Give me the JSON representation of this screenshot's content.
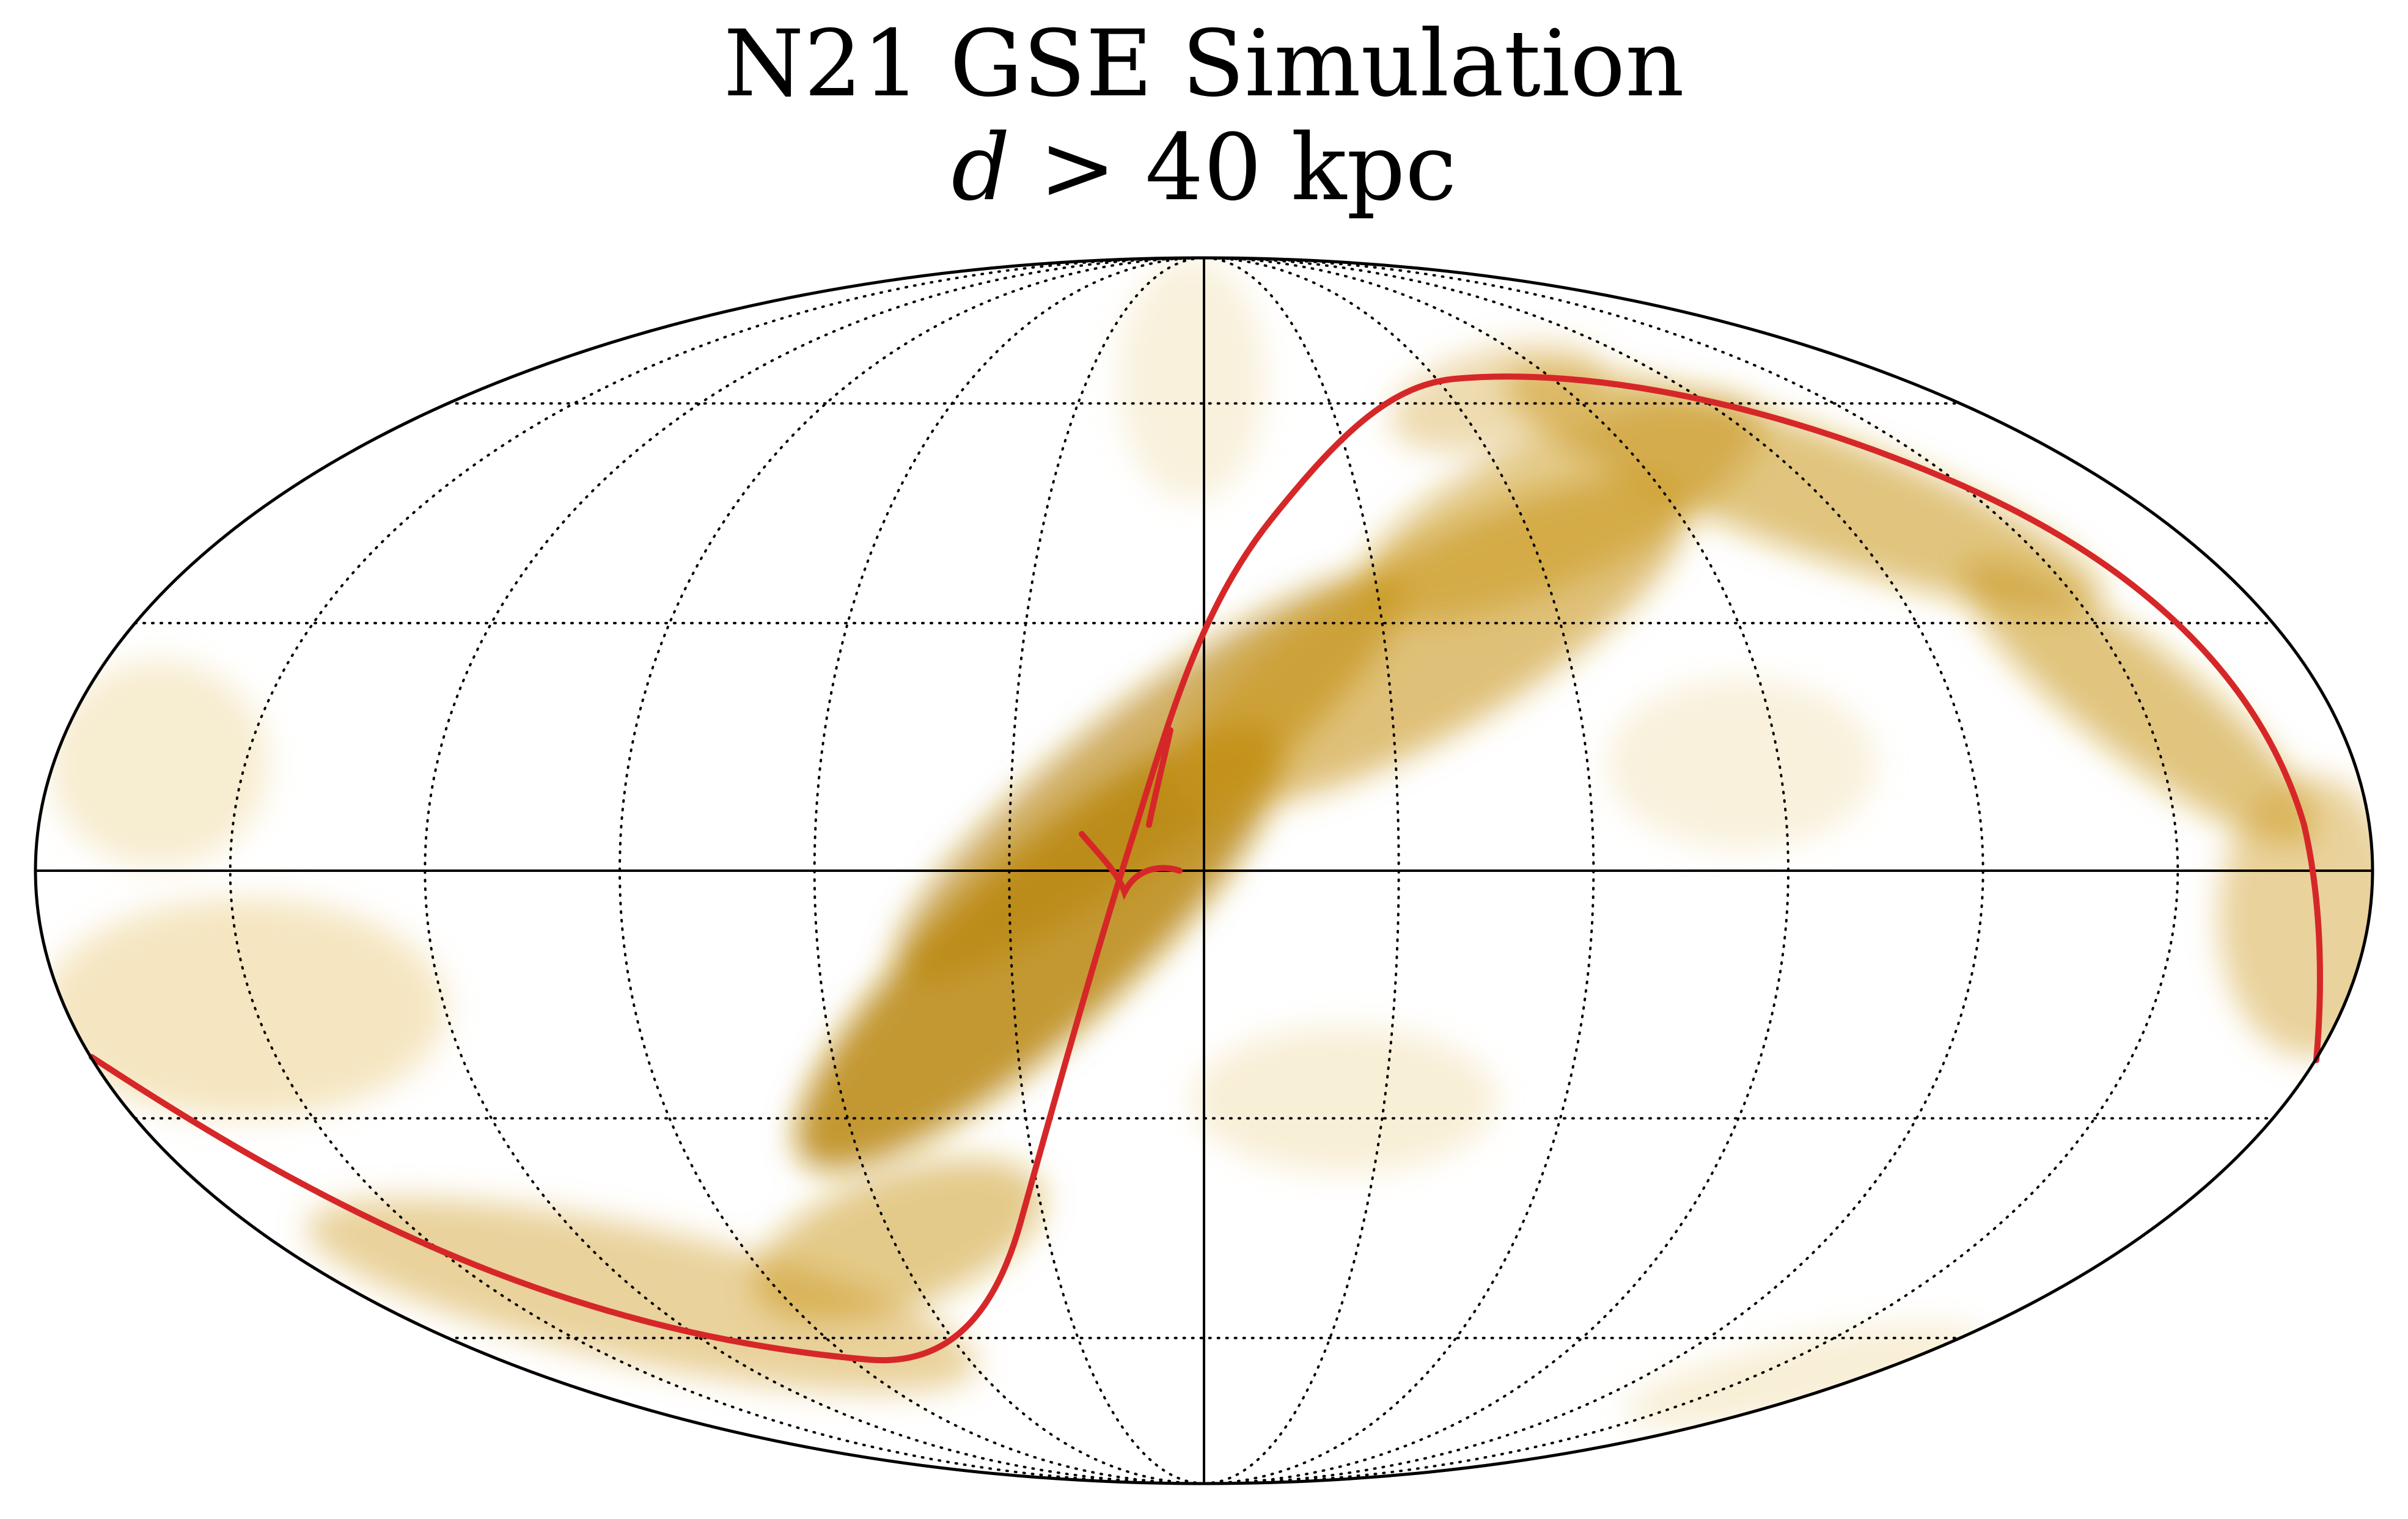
{
  "title": {
    "line1": "N21 GSE Simulation",
    "line2_var": "d",
    "line2_op": ">",
    "line2_rest": "40 kpc"
  },
  "map": {
    "projection": "mollweide",
    "background_color": "#ffffff",
    "density_color": "#b8860b",
    "track_color": "#d62728",
    "graticule_lon_step_deg": 30,
    "graticule_lat_step_deg": 30,
    "central_meridian_and_equator_solid": true
  }
}
